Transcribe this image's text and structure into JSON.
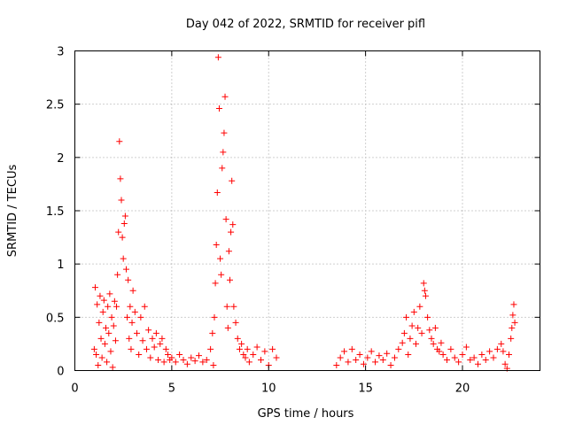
{
  "chart_data": {
    "type": "scatter",
    "title": "Day 042 of 2022, SRMTID for receiver pifl",
    "xlabel": "GPS time / hours",
    "ylabel": "SRMTID / TECUs",
    "xlim": [
      0,
      24
    ],
    "ylim": [
      0,
      3
    ],
    "xticks": [
      0,
      5,
      10,
      15,
      20
    ],
    "yticks": [
      0,
      0.5,
      1,
      1.5,
      2,
      2.5,
      3
    ],
    "xtick_labels": [
      "0",
      "5",
      "10",
      "15",
      "20"
    ],
    "ytick_labels": [
      "0",
      "0.5",
      "1",
      "1.5",
      "2",
      "2.5",
      "3"
    ],
    "grid": true,
    "marker": "+",
    "color": "#ff0000",
    "series": [
      {
        "name": "SRMTID",
        "x": [
          1.0,
          1.05,
          1.1,
          1.15,
          1.2,
          1.25,
          1.3,
          1.35,
          1.4,
          1.45,
          1.5,
          1.55,
          1.6,
          1.65,
          1.7,
          1.75,
          1.8,
          1.85,
          1.9,
          1.95,
          2.0,
          2.05,
          2.1,
          2.15,
          2.2,
          2.25,
          2.3,
          2.35,
          2.4,
          2.45,
          2.5,
          2.55,
          2.6,
          2.65,
          2.7,
          2.75,
          2.8,
          2.85,
          2.9,
          2.95,
          3.0,
          3.1,
          3.2,
          3.3,
          3.4,
          3.5,
          3.6,
          3.7,
          3.8,
          3.9,
          4.0,
          4.1,
          4.2,
          4.3,
          4.4,
          4.5,
          4.6,
          4.7,
          4.8,
          4.9,
          5.0,
          5.2,
          5.4,
          5.6,
          5.8,
          6.0,
          6.2,
          6.4,
          6.6,
          6.8,
          7.0,
          7.1,
          7.15,
          7.2,
          7.25,
          7.3,
          7.35,
          7.4,
          7.45,
          7.5,
          7.55,
          7.6,
          7.65,
          7.7,
          7.75,
          7.8,
          7.85,
          7.9,
          7.95,
          8.0,
          8.05,
          8.1,
          8.15,
          8.2,
          8.3,
          8.4,
          8.5,
          8.6,
          8.7,
          8.8,
          8.9,
          9.0,
          9.2,
          9.4,
          9.6,
          9.8,
          10.0,
          10.2,
          10.4,
          13.5,
          13.7,
          13.9,
          14.1,
          14.3,
          14.5,
          14.7,
          14.9,
          15.1,
          15.3,
          15.5,
          15.7,
          15.9,
          16.1,
          16.3,
          16.5,
          16.7,
          16.9,
          17.0,
          17.1,
          17.2,
          17.3,
          17.4,
          17.5,
          17.6,
          17.7,
          17.8,
          17.9,
          18.0,
          18.05,
          18.1,
          18.2,
          18.3,
          18.4,
          18.5,
          18.6,
          18.7,
          18.8,
          18.9,
          19.0,
          19.2,
          19.4,
          19.6,
          19.8,
          20.0,
          20.2,
          20.4,
          20.6,
          20.8,
          21.0,
          21.2,
          21.4,
          21.6,
          21.8,
          22.0,
          22.1,
          22.2,
          22.3,
          22.4,
          22.5,
          22.55,
          22.6,
          22.65,
          22.7
        ],
        "y": [
          0.2,
          0.78,
          0.15,
          0.62,
          0.05,
          0.45,
          0.7,
          0.3,
          0.12,
          0.55,
          0.66,
          0.25,
          0.4,
          0.08,
          0.6,
          0.35,
          0.72,
          0.18,
          0.5,
          0.03,
          0.42,
          0.65,
          0.28,
          0.6,
          0.9,
          1.3,
          2.15,
          1.8,
          1.6,
          1.25,
          1.05,
          1.38,
          1.45,
          0.95,
          0.5,
          0.85,
          0.3,
          0.6,
          0.2,
          0.45,
          0.75,
          0.55,
          0.35,
          0.15,
          0.5,
          0.28,
          0.6,
          0.2,
          0.38,
          0.12,
          0.3,
          0.22,
          0.35,
          0.1,
          0.25,
          0.3,
          0.08,
          0.2,
          0.15,
          0.1,
          0.12,
          0.08,
          0.15,
          0.1,
          0.06,
          0.12,
          0.09,
          0.14,
          0.08,
          0.1,
          0.2,
          0.35,
          0.05,
          0.5,
          0.82,
          1.18,
          1.67,
          2.94,
          2.46,
          1.05,
          0.9,
          1.9,
          2.05,
          2.23,
          2.57,
          1.42,
          0.6,
          0.4,
          1.12,
          0.85,
          1.3,
          1.78,
          1.37,
          0.6,
          0.45,
          0.3,
          0.2,
          0.25,
          0.15,
          0.12,
          0.2,
          0.08,
          0.15,
          0.22,
          0.1,
          0.18,
          0.05,
          0.2,
          0.12,
          0.05,
          0.12,
          0.18,
          0.08,
          0.2,
          0.1,
          0.15,
          0.06,
          0.12,
          0.18,
          0.08,
          0.14,
          0.1,
          0.16,
          0.05,
          0.12,
          0.2,
          0.26,
          0.35,
          0.5,
          0.15,
          0.3,
          0.42,
          0.55,
          0.25,
          0.4,
          0.6,
          0.35,
          0.82,
          0.75,
          0.7,
          0.5,
          0.38,
          0.3,
          0.25,
          0.4,
          0.2,
          0.18,
          0.26,
          0.15,
          0.1,
          0.2,
          0.12,
          0.08,
          0.15,
          0.22,
          0.1,
          0.12,
          0.06,
          0.15,
          0.1,
          0.18,
          0.12,
          0.2,
          0.25,
          0.18,
          0.06,
          0.02,
          0.15,
          0.3,
          0.4,
          0.52,
          0.62,
          0.45
        ]
      }
    ]
  }
}
